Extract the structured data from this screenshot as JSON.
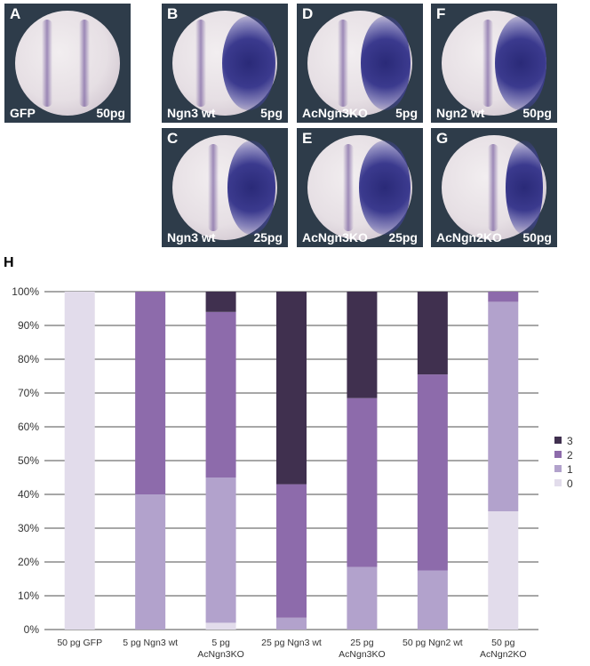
{
  "panels": [
    {
      "letter": "A",
      "label": "GFP",
      "dose": "50pg"
    },
    {
      "letter": "B",
      "label": "Ngn3 wt",
      "dose": "5pg"
    },
    {
      "letter": "D",
      "label": "AcNgn3KO",
      "dose": "5pg"
    },
    {
      "letter": "F",
      "label": "Ngn2 wt",
      "dose": "50pg"
    },
    {
      "letter": "C",
      "label": "Ngn3 wt",
      "dose": "25pg"
    },
    {
      "letter": "E",
      "label": "AcNgn3KO",
      "dose": "25pg"
    },
    {
      "letter": "G",
      "label": "AcNgn2KO",
      "dose": "50pg"
    }
  ],
  "chart_letter": "H",
  "colors": {
    "s0": "#e2dceb",
    "s1": "#b2a2cc",
    "s2": "#8d6bab",
    "s3": "#40304f"
  },
  "chart_data": {
    "type": "bar",
    "stacked": "percent",
    "categories": [
      [
        "50 pg GFP"
      ],
      [
        "5 pg Ngn3 wt"
      ],
      [
        "5 pg",
        "AcNgn3KO"
      ],
      [
        "25 pg Ngn3 wt"
      ],
      [
        "25 pg",
        "AcNgn3KO"
      ],
      [
        "50 pg Ngn2 wt"
      ],
      [
        "50 pg",
        "AcNgn2KO"
      ]
    ],
    "series": [
      {
        "name": "0",
        "values": [
          100,
          0,
          2,
          0,
          0,
          0,
          35
        ]
      },
      {
        "name": "1",
        "values": [
          0,
          40,
          43,
          3.5,
          18.5,
          17.5,
          62
        ]
      },
      {
        "name": "2",
        "values": [
          0,
          60,
          49,
          39.5,
          50,
          58,
          3
        ]
      },
      {
        "name": "3",
        "values": [
          0,
          0,
          6,
          57,
          31.5,
          24.5,
          0
        ]
      }
    ],
    "yticks": [
      "0%",
      "10%",
      "20%",
      "30%",
      "40%",
      "50%",
      "60%",
      "70%",
      "80%",
      "90%",
      "100%"
    ],
    "ylim": [
      0,
      100
    ],
    "grid": true,
    "legend": "right",
    "legend_order": [
      "3",
      "2",
      "1",
      "0"
    ]
  }
}
